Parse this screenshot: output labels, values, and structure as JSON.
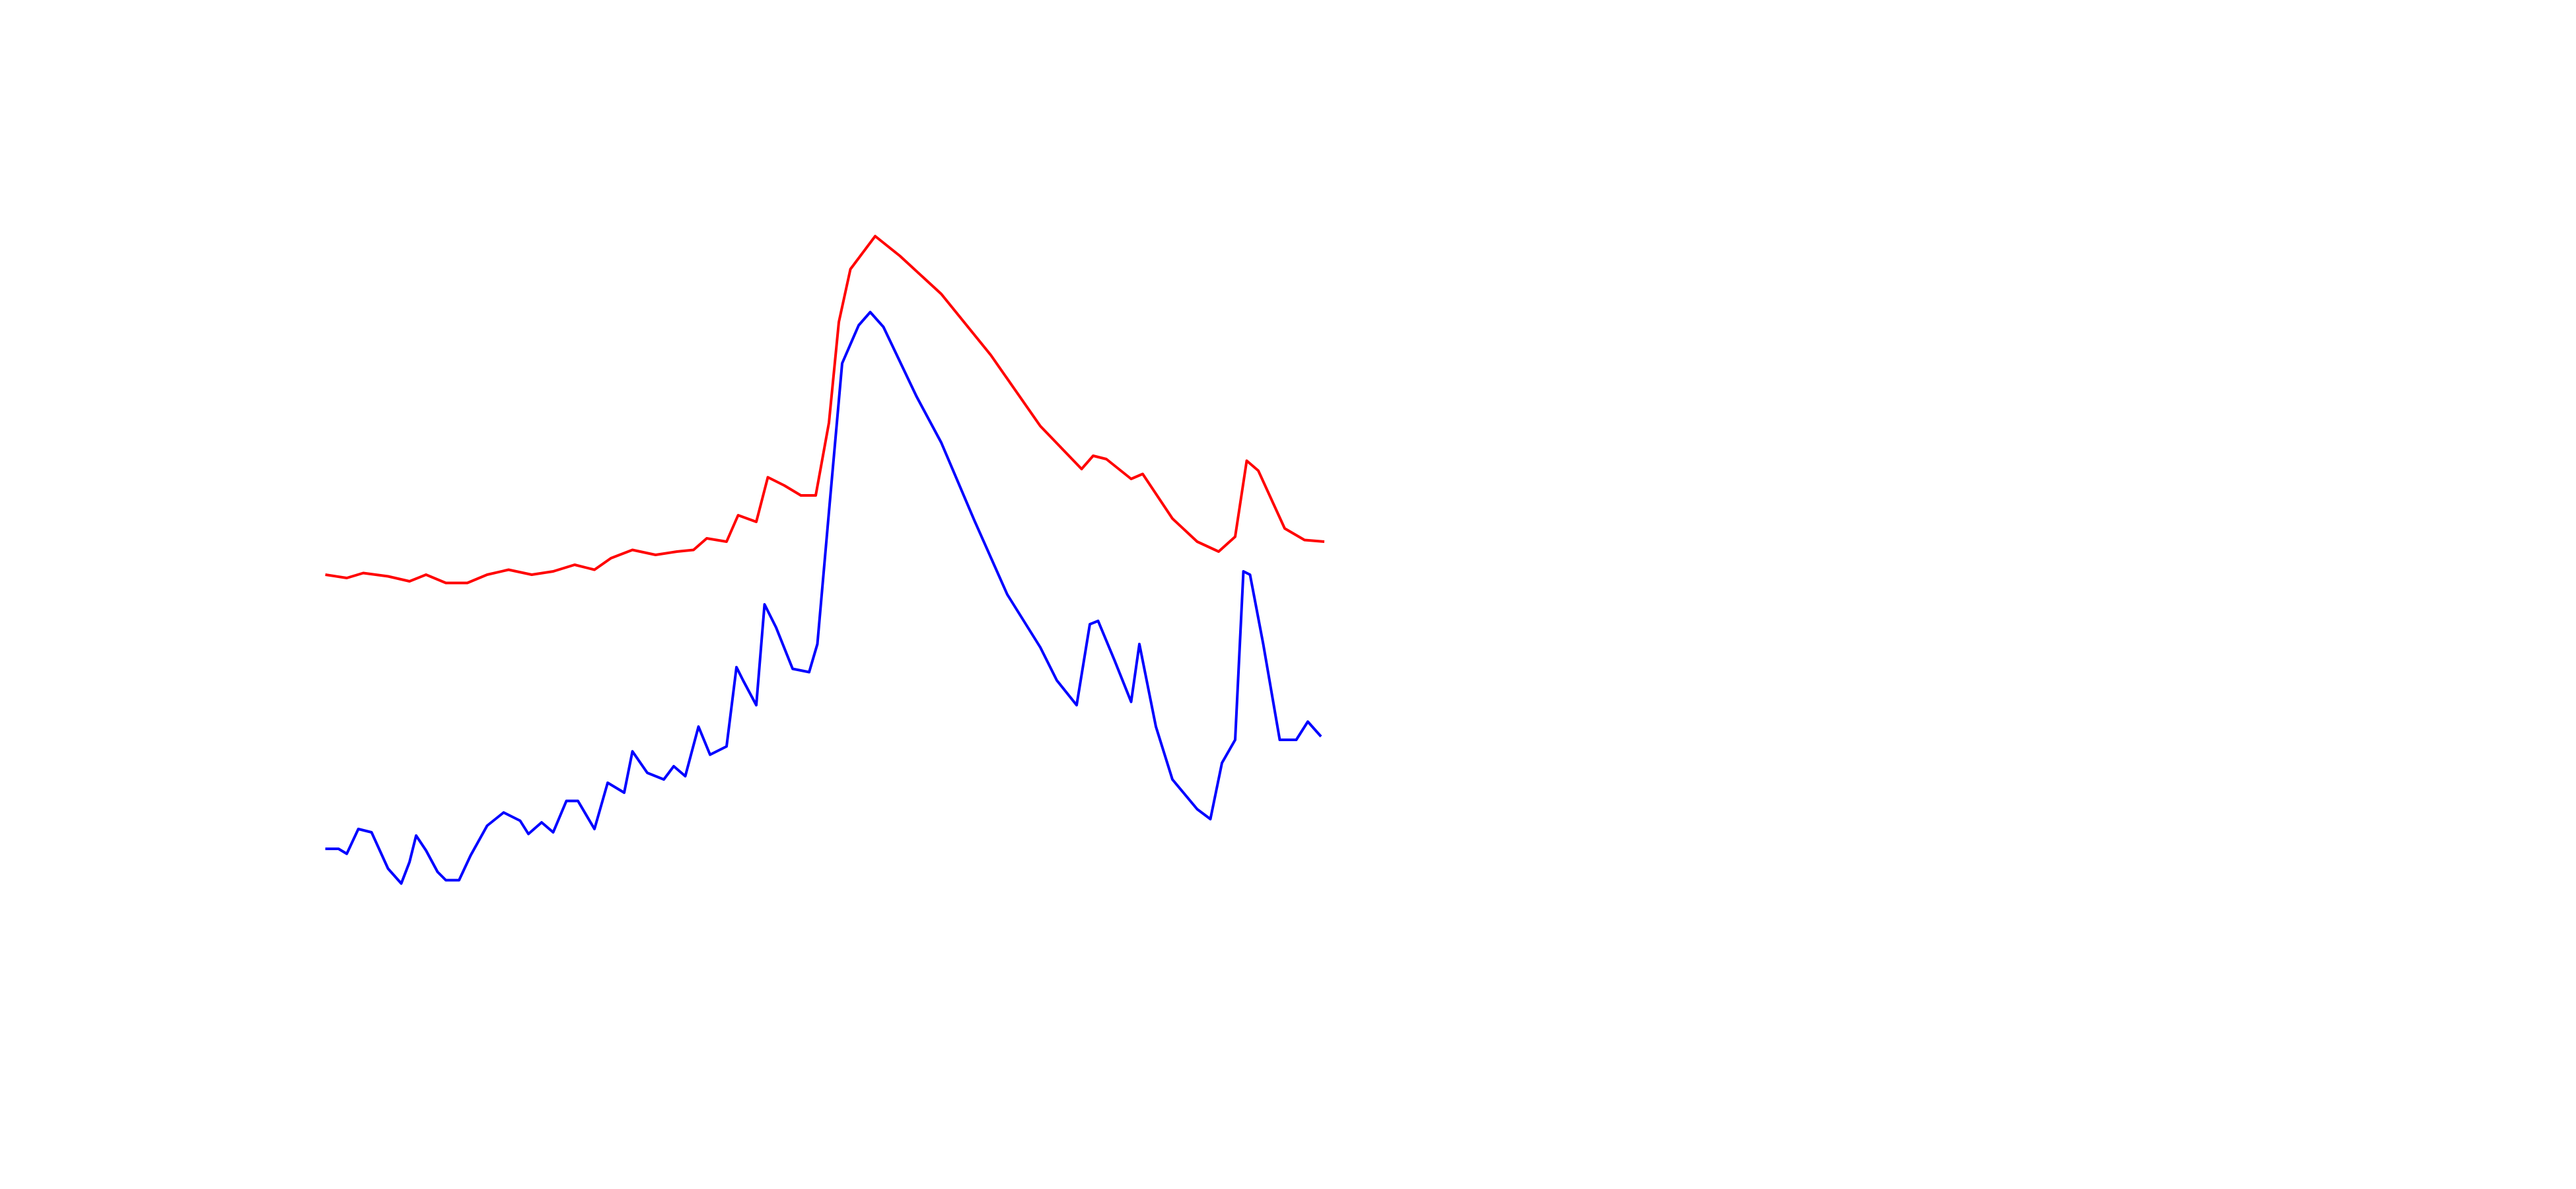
{
  "chart_data": {
    "type": "line",
    "xlim": [
      0,
      1560
    ],
    "ylim": [
      0,
      720
    ],
    "series": [
      {
        "color": "#ff0000",
        "x": [
          197,
          210,
          220,
          235,
          248,
          258,
          270,
          283,
          295,
          308,
          322,
          335,
          348,
          360,
          370,
          383,
          397,
          410,
          420,
          428,
          440,
          447,
          458,
          465,
          475,
          485,
          494,
          502,
          508,
          515,
          530,
          545,
          570,
          600,
          630,
          655,
          662,
          670,
          685,
          692,
          710,
          725,
          738,
          748,
          755,
          762,
          778,
          790,
          802
        ],
        "values": [
          372,
          370,
          373,
          371,
          368,
          372,
          367,
          367,
          372,
          375,
          372,
          374,
          378,
          375,
          382,
          387,
          384,
          386,
          387,
          394,
          392,
          408,
          404,
          431,
          426,
          420,
          420,
          464,
          525,
          557,
          577,
          565,
          542,
          505,
          462,
          436,
          444,
          442,
          430,
          433,
          406,
          392,
          386,
          395,
          441,
          435,
          400,
          393,
          392
        ]
      },
      {
        "color": "#0000ff",
        "x": [
          197,
          205,
          210,
          217,
          225,
          235,
          243,
          248,
          252,
          258,
          265,
          270,
          278,
          285,
          295,
          305,
          315,
          320,
          328,
          335,
          343,
          350,
          360,
          368,
          378,
          383,
          392,
          402,
          408,
          415,
          423,
          430,
          440,
          446,
          450,
          458,
          463,
          470,
          480,
          490,
          495,
          502,
          510,
          520,
          527,
          535,
          555,
          570,
          590,
          610,
          630,
          640,
          652,
          660,
          665,
          675,
          685,
          690,
          700,
          710,
          725,
          733,
          740,
          748,
          753,
          757,
          765,
          775,
          785,
          792,
          800
        ],
        "values": [
          206,
          206,
          203,
          218,
          216,
          194,
          185,
          198,
          214,
          205,
          192,
          187,
          187,
          202,
          220,
          228,
          223,
          215,
          222,
          216,
          235,
          235,
          218,
          246,
          240,
          265,
          252,
          248,
          256,
          250,
          280,
          263,
          268,
          316,
          308,
          293,
          354,
          340,
          315,
          313,
          330,
          410,
          500,
          523,
          531,
          522,
          480,
          452,
          405,
          360,
          328,
          308,
          293,
          342,
          344,
          320,
          295,
          330,
          280,
          248,
          230,
          224,
          258,
          272,
          374,
          372,
          330,
          272,
          272,
          283,
          274
        ]
      }
    ]
  }
}
